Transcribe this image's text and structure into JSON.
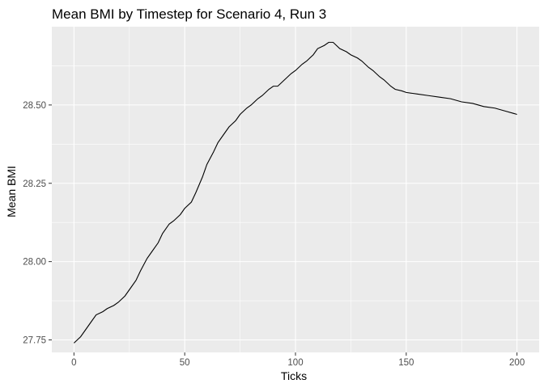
{
  "chart_data": {
    "type": "line",
    "title": "Mean BMI by Timestep for Scenario 4, Run 3",
    "xlabel": "Ticks",
    "ylabel": "Mean BMI",
    "xlim": [
      -10,
      210
    ],
    "ylim": [
      27.71,
      28.75
    ],
    "x_ticks": [
      0,
      50,
      100,
      150,
      200
    ],
    "x_tick_labels": [
      "0",
      "50",
      "100",
      "150",
      "200"
    ],
    "y_ticks": [
      27.75,
      28.0,
      28.25,
      28.5
    ],
    "y_tick_labels": [
      "27.75",
      "28.00",
      "28.25",
      "28.50"
    ],
    "grid": true,
    "legend": "none",
    "background_color": "#ebebeb",
    "line_color": "#000000",
    "series": [
      {
        "x": [
          0,
          3,
          5,
          8,
          10,
          13,
          15,
          18,
          20,
          23,
          25,
          28,
          30,
          33,
          35,
          38,
          40,
          43,
          45,
          48,
          50,
          53,
          55,
          58,
          60,
          63,
          65,
          68,
          70,
          73,
          75,
          78,
          80,
          83,
          85,
          88,
          90,
          92,
          95,
          98,
          100,
          103,
          105,
          108,
          110,
          113,
          115,
          117,
          120,
          123,
          125,
          128,
          130,
          133,
          135,
          138,
          140,
          143,
          145,
          148,
          150,
          155,
          160,
          165,
          170,
          175,
          180,
          185,
          190,
          195,
          200
        ],
        "y": [
          27.74,
          27.76,
          27.78,
          27.81,
          27.83,
          27.84,
          27.85,
          27.86,
          27.87,
          27.89,
          27.91,
          27.94,
          27.97,
          28.01,
          28.03,
          28.06,
          28.09,
          28.12,
          28.13,
          28.15,
          28.17,
          28.19,
          28.22,
          28.27,
          28.31,
          28.35,
          28.38,
          28.41,
          28.43,
          28.45,
          28.47,
          28.49,
          28.5,
          28.52,
          28.53,
          28.55,
          28.56,
          28.56,
          28.58,
          28.6,
          28.61,
          28.63,
          28.64,
          28.66,
          28.68,
          28.69,
          28.7,
          28.7,
          28.68,
          28.67,
          28.66,
          28.65,
          28.64,
          28.62,
          28.61,
          28.59,
          28.58,
          28.56,
          28.55,
          28.545,
          28.54,
          28.535,
          28.53,
          28.525,
          28.52,
          28.51,
          28.505,
          28.495,
          28.49,
          28.48,
          28.47
        ]
      }
    ]
  }
}
